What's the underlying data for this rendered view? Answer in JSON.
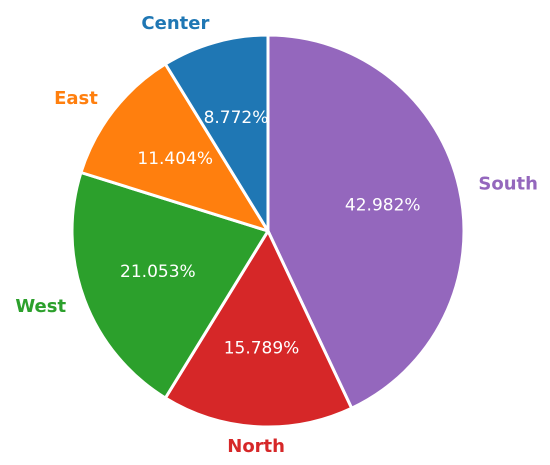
{
  "chart_data": {
    "type": "pie",
    "title": "",
    "slices": [
      {
        "label": "South",
        "value": 42.982,
        "display": "42.982%",
        "color": "#9467bd"
      },
      {
        "label": "North",
        "value": 15.789,
        "display": "15.789%",
        "color": "#d62728"
      },
      {
        "label": "West",
        "value": 21.053,
        "display": "21.053%",
        "color": "#2ca02c"
      },
      {
        "label": "East",
        "value": 11.404,
        "display": "11.404%",
        "color": "#ff7f0e"
      },
      {
        "label": "Center",
        "value": 8.772,
        "display": "8.772%",
        "color": "#1f77b4"
      }
    ],
    "start_angle": "top",
    "direction": "clockwise",
    "edge_color": "#ffffff",
    "legend": "none"
  }
}
